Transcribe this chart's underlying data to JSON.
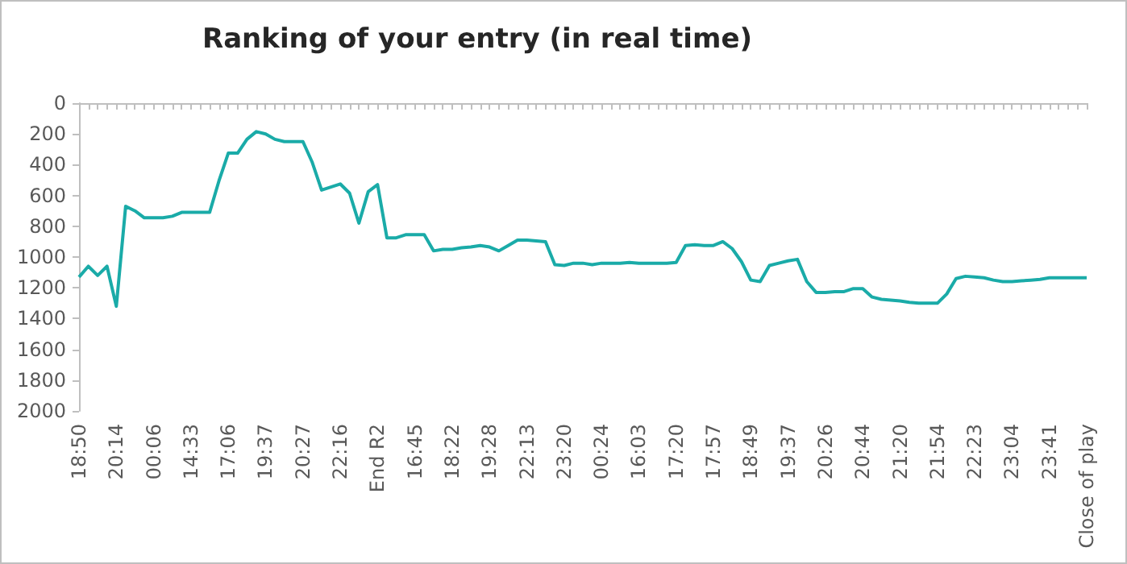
{
  "chart_data": {
    "type": "line",
    "title": "Ranking of your entry (in real time)",
    "categories": [
      "18:50",
      null,
      null,
      null,
      "20:14",
      null,
      null,
      null,
      "00:06",
      null,
      null,
      null,
      "14:33",
      null,
      null,
      null,
      "17:06",
      null,
      null,
      null,
      "19:37",
      null,
      null,
      null,
      "20:27",
      null,
      null,
      null,
      "22:16",
      null,
      null,
      null,
      "End R2",
      null,
      null,
      null,
      "16:45",
      null,
      null,
      null,
      "18:22",
      null,
      null,
      null,
      "19:28",
      null,
      null,
      null,
      "22:13",
      null,
      null,
      null,
      "23:20",
      null,
      null,
      null,
      "00:24",
      null,
      null,
      null,
      "16:03",
      null,
      null,
      null,
      "17:20",
      null,
      null,
      null,
      "17:57",
      null,
      null,
      null,
      "18:49",
      null,
      null,
      null,
      "19:37",
      null,
      null,
      null,
      "20:26",
      null,
      null,
      null,
      "20:44",
      null,
      null,
      null,
      "21:20",
      null,
      null,
      null,
      "21:54",
      null,
      null,
      null,
      "22:23",
      null,
      null,
      null,
      "23:04",
      null,
      null,
      null,
      "23:41",
      null,
      null,
      null,
      "Close of play"
    ],
    "series": [
      {
        "color": "#1aaba8",
        "values": [
          1130,
          1060,
          1120,
          1060,
          1320,
          670,
          700,
          745,
          745,
          745,
          735,
          710,
          710,
          710,
          710,
          505,
          325,
          325,
          235,
          185,
          200,
          235,
          250,
          250,
          250,
          385,
          565,
          545,
          525,
          585,
          780,
          575,
          530,
          875,
          875,
          855,
          855,
          855,
          960,
          950,
          950,
          940,
          935,
          925,
          935,
          960,
          925,
          890,
          890,
          895,
          900,
          1050,
          1055,
          1040,
          1040,
          1050,
          1040,
          1040,
          1040,
          1035,
          1040,
          1040,
          1040,
          1040,
          1035,
          925,
          920,
          925,
          925,
          900,
          945,
          1030,
          1150,
          1160,
          1055,
          1040,
          1025,
          1015,
          1160,
          1230,
          1230,
          1225,
          1225,
          1205,
          1205,
          1260,
          1275,
          1280,
          1285,
          1295,
          1300,
          1300,
          1300,
          1240,
          1140,
          1125,
          1130,
          1135,
          1150,
          1160,
          1160,
          1155,
          1150,
          1145,
          1135,
          1135,
          1135,
          1135,
          1135
        ]
      }
    ],
    "ylim": [
      2000,
      0
    ],
    "yticks": [
      0,
      200,
      400,
      600,
      800,
      1000,
      1200,
      1400,
      1600,
      1800,
      2000
    ],
    "grid": false,
    "marker": "none",
    "line_style": "solid"
  }
}
